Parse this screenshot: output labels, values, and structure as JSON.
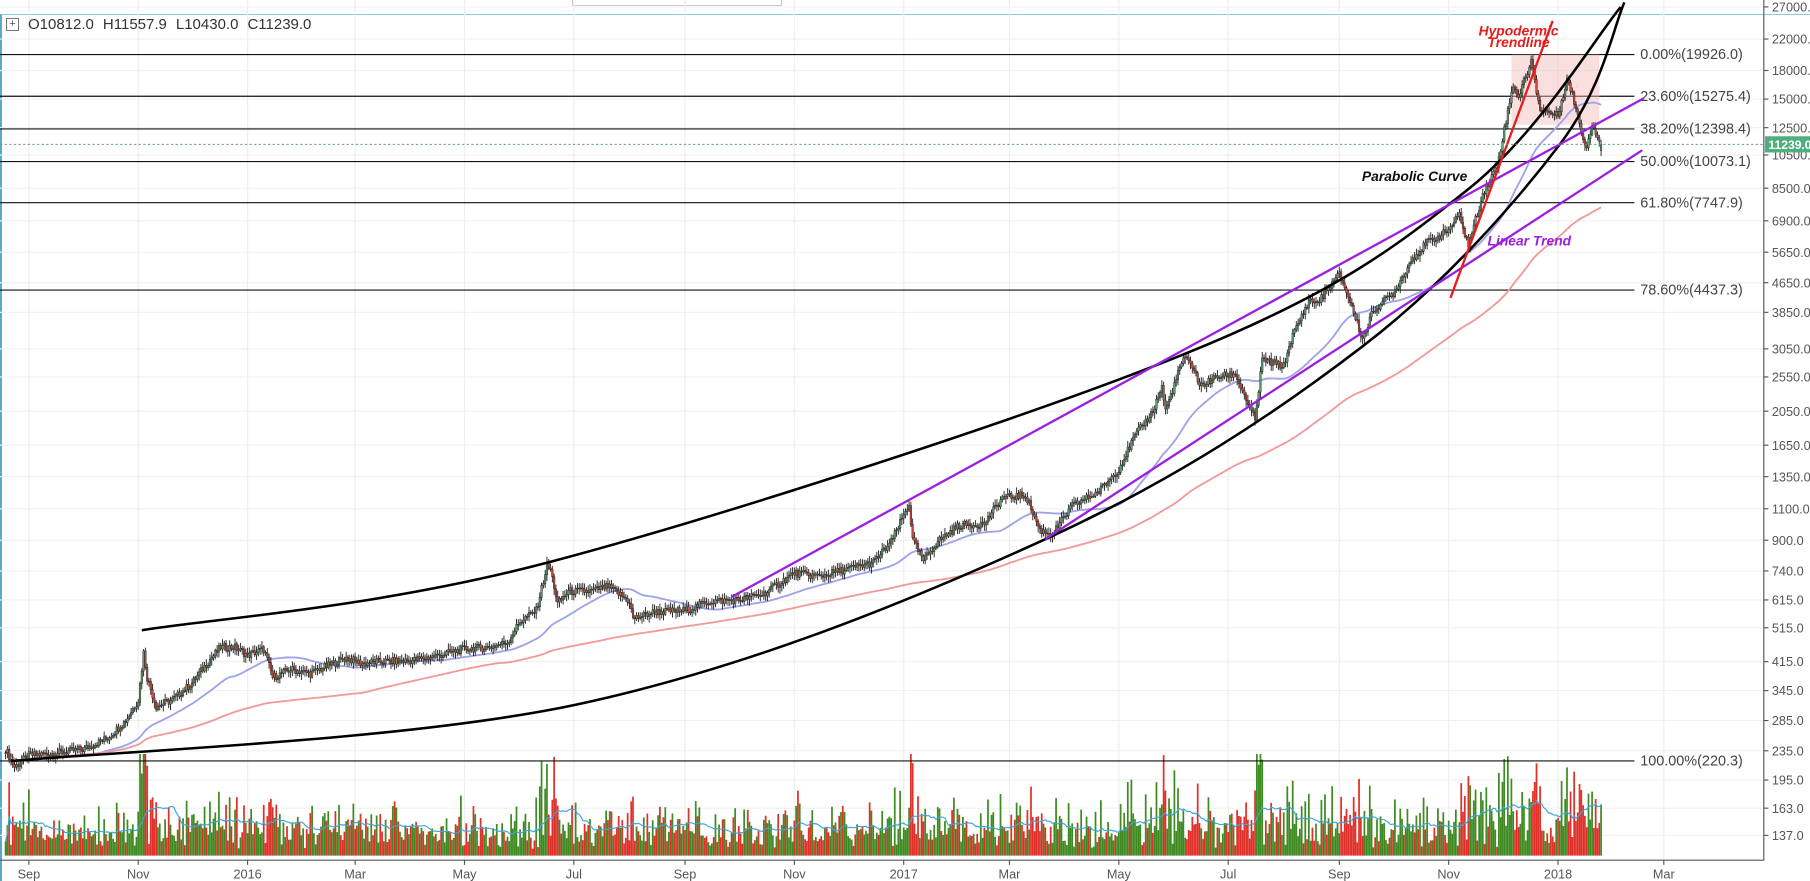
{
  "legend": {
    "items": [
      {
        "label": "O",
        "value": "10812.0"
      },
      {
        "label": "H",
        "value": "11557.9"
      },
      {
        "label": "L",
        "value": "10430.0"
      },
      {
        "label": "C",
        "value": "11239.0"
      }
    ]
  },
  "chart_data": {
    "type": "candlestick",
    "price_scale": "log",
    "grid": true,
    "price_axis": {
      "ylim": [
        137,
        27000
      ],
      "ticks": [
        "27000.0",
        "22000.0",
        "18000.0",
        "15000.0",
        "12500.0",
        "10500.0",
        "8500.0",
        "6900.0",
        "5650.0",
        "4650.0",
        "3850.0",
        "3050.0",
        "2550.0",
        "2050.0",
        "1650.0",
        "1350.0",
        "1100.0",
        "900.0",
        "740.0",
        "615.0",
        "515.0",
        "415.0",
        "345.0",
        "285.0",
        "235.0",
        "195.0",
        "163.0",
        "137.0"
      ]
    },
    "time_axis": {
      "ticks": [
        {
          "label": "Sep",
          "date": "2015-09-01"
        },
        {
          "label": "Nov",
          "date": "2015-11-01"
        },
        {
          "label": "2016",
          "date": "2016-01-01"
        },
        {
          "label": "Mar",
          "date": "2016-03-01"
        },
        {
          "label": "May",
          "date": "2016-05-01"
        },
        {
          "label": "Jul",
          "date": "2016-07-01"
        },
        {
          "label": "Sep",
          "date": "2016-09-01"
        },
        {
          "label": "Nov",
          "date": "2016-11-01"
        },
        {
          "label": "2017",
          "date": "2017-01-01"
        },
        {
          "label": "Mar",
          "date": "2017-03-01"
        },
        {
          "label": "May",
          "date": "2017-05-01"
        },
        {
          "label": "Jul",
          "date": "2017-07-01"
        },
        {
          "label": "Sep",
          "date": "2017-09-01"
        },
        {
          "label": "Nov",
          "date": "2017-11-01"
        },
        {
          "label": "2018",
          "date": "2018-01-01"
        },
        {
          "label": "Mar",
          "date": "2018-03-01"
        }
      ]
    },
    "closes": [
      [
        "2015-08-19",
        238
      ],
      [
        "2015-08-24",
        212
      ],
      [
        "2015-09-01",
        228
      ],
      [
        "2015-09-15",
        231
      ],
      [
        "2015-10-01",
        237
      ],
      [
        "2015-10-15",
        255
      ],
      [
        "2015-10-25",
        285
      ],
      [
        "2015-11-01",
        325
      ],
      [
        "2015-11-04",
        440
      ],
      [
        "2015-11-06",
        375
      ],
      [
        "2015-11-11",
        312
      ],
      [
        "2015-11-20",
        325
      ],
      [
        "2015-12-01",
        362
      ],
      [
        "2015-12-10",
        415
      ],
      [
        "2015-12-17",
        455
      ],
      [
        "2015-12-25",
        455
      ],
      [
        "2016-01-01",
        432
      ],
      [
        "2016-01-10",
        450
      ],
      [
        "2016-01-15",
        375
      ],
      [
        "2016-01-25",
        395
      ],
      [
        "2016-02-05",
        385
      ],
      [
        "2016-02-15",
        405
      ],
      [
        "2016-02-25",
        425
      ],
      [
        "2016-03-05",
        410
      ],
      [
        "2016-03-15",
        415
      ],
      [
        "2016-04-01",
        418
      ],
      [
        "2016-04-15",
        430
      ],
      [
        "2016-05-01",
        450
      ],
      [
        "2016-05-15",
        455
      ],
      [
        "2016-05-25",
        470
      ],
      [
        "2016-06-01",
        536
      ],
      [
        "2016-06-10",
        575
      ],
      [
        "2016-06-16",
        765
      ],
      [
        "2016-06-18",
        745
      ],
      [
        "2016-06-22",
        600
      ],
      [
        "2016-06-28",
        650
      ],
      [
        "2016-07-10",
        650
      ],
      [
        "2016-07-20",
        670
      ],
      [
        "2016-08-01",
        610
      ],
      [
        "2016-08-03",
        545
      ],
      [
        "2016-08-15",
        570
      ],
      [
        "2016-09-01",
        575
      ],
      [
        "2016-09-15",
        610
      ],
      [
        "2016-10-01",
        615
      ],
      [
        "2016-10-15",
        640
      ],
      [
        "2016-11-01",
        730
      ],
      [
        "2016-11-15",
        715
      ],
      [
        "2016-12-01",
        750
      ],
      [
        "2016-12-15",
        780
      ],
      [
        "2016-12-25",
        890
      ],
      [
        "2017-01-04",
        1135
      ],
      [
        "2017-01-06",
        900
      ],
      [
        "2017-01-12",
        790
      ],
      [
        "2017-01-20",
        895
      ],
      [
        "2017-02-01",
        990
      ],
      [
        "2017-02-15",
        1000
      ],
      [
        "2017-02-25",
        1180
      ],
      [
        "2017-03-10",
        1200
      ],
      [
        "2017-03-18",
        960
      ],
      [
        "2017-03-25",
        935
      ],
      [
        "2017-04-05",
        1120
      ],
      [
        "2017-04-20",
        1230
      ],
      [
        "2017-05-01",
        1420
      ],
      [
        "2017-05-10",
        1750
      ],
      [
        "2017-05-20",
        2050
      ],
      [
        "2017-05-25",
        2400
      ],
      [
        "2017-05-27",
        2050
      ],
      [
        "2017-06-06",
        2880
      ],
      [
        "2017-06-12",
        2700
      ],
      [
        "2017-06-15",
        2400
      ],
      [
        "2017-06-25",
        2550
      ],
      [
        "2017-07-05",
        2600
      ],
      [
        "2017-07-16",
        1930
      ],
      [
        "2017-07-20",
        2850
      ],
      [
        "2017-08-01",
        2730
      ],
      [
        "2017-08-05",
        3230
      ],
      [
        "2017-08-15",
        4150
      ],
      [
        "2017-08-20",
        4100
      ],
      [
        "2017-09-01",
        4900
      ],
      [
        "2017-09-05",
        4400
      ],
      [
        "2017-09-14",
        3250
      ],
      [
        "2017-09-20",
        3900
      ],
      [
        "2017-10-01",
        4350
      ],
      [
        "2017-10-12",
        5450
      ],
      [
        "2017-10-20",
        6000
      ],
      [
        "2017-10-31",
        6450
      ],
      [
        "2017-11-07",
        7150
      ],
      [
        "2017-11-12",
        5900
      ],
      [
        "2017-11-20",
        8200
      ],
      [
        "2017-11-28",
        9800
      ],
      [
        "2017-12-07",
        16500
      ],
      [
        "2017-12-10",
        15200
      ],
      [
        "2017-12-17",
        19100
      ],
      [
        "2017-12-22",
        14000
      ],
      [
        "2017-12-25",
        13900
      ],
      [
        "2018-01-01",
        13500
      ],
      [
        "2018-01-06",
        17100
      ],
      [
        "2018-01-10",
        14800
      ],
      [
        "2018-01-16",
        11200
      ],
      [
        "2018-01-17",
        11200
      ],
      [
        "2018-01-20",
        12800
      ],
      [
        "2018-01-25",
        11239
      ]
    ],
    "last_candle": {
      "open": 10812.0,
      "high": 11557.9,
      "low": 10430.0,
      "close": 11239.0
    },
    "last_price_tag": "11239.0",
    "moving_averages": [
      {
        "period": 50,
        "color": "#9ea3ea"
      },
      {
        "period": 200,
        "color": "#f19a9a"
      }
    ],
    "volume_ma_color": "#3ea6d8",
    "fib_retracement": [
      {
        "label": "0.00%(19926.0)",
        "price": 19926.0
      },
      {
        "label": "23.60%(15275.4)",
        "price": 15275.4
      },
      {
        "label": "38.20%(12398.4)",
        "price": 12398.4
      },
      {
        "label": "50.00%(10073.1)",
        "price": 10073.1
      },
      {
        "label": "61.80%(7747.9)",
        "price": 7747.9
      },
      {
        "label": "78.60%(4437.3)",
        "price": 4437.3
      },
      {
        "label": "100.00%(220.3)",
        "price": 220.3
      }
    ],
    "drawings": [
      {
        "kind": "curve",
        "color": "#000000",
        "points": [
          [
            "2015-11-03",
            507
          ],
          [
            "2016-06-17",
            782
          ],
          [
            "2017-06-06",
            2943
          ],
          [
            "2017-11-11",
            8371
          ],
          [
            "2018-02-05",
            27000
          ]
        ]
      },
      {
        "kind": "curve",
        "color": "#000000",
        "points": [
          [
            "2015-08-22",
            220
          ],
          [
            "2016-07-03",
            316
          ],
          [
            "2017-03-21",
            906
          ],
          [
            "2017-09-14",
            3100
          ],
          [
            "2018-01-02",
            11240
          ],
          [
            "2018-02-07",
            27800
          ]
        ]
      },
      {
        "kind": "line",
        "color": "#9b1fe0",
        "points": [
          [
            "2016-09-27",
            627
          ],
          [
            "2018-02-18",
            15090
          ]
        ]
      },
      {
        "kind": "line",
        "color": "#9b1fe0",
        "points": [
          [
            "2017-03-21",
            906
          ],
          [
            "2018-02-17",
            10830
          ]
        ]
      },
      {
        "kind": "line",
        "color": "#e51c1c",
        "points": [
          [
            "2017-11-02",
            4220
          ],
          [
            "2017-12-29",
            24700
          ]
        ]
      },
      {
        "kind": "rect",
        "color": "#f5b8b8",
        "points": [
          [
            "2017-12-06",
            19926
          ],
          [
            "2018-01-24",
            12740
          ]
        ]
      }
    ],
    "annotations": [
      {
        "text": "Hypodermic",
        "color": "#e51c1c",
        "date": "2017-12-10",
        "price": 22500
      },
      {
        "text": "Trendline",
        "color": "#e51c1c",
        "date": "2017-12-10",
        "price": 20900
      },
      {
        "text": "Parabolic Curve",
        "color": "#111111",
        "date": "2017-10-13",
        "price": 8900
      },
      {
        "text": "Linear Trend",
        "color": "#9b1fe0",
        "date": "2017-12-16",
        "price": 5900
      }
    ],
    "colors": {
      "up": "#5f9e6e",
      "down": "#c94a3d",
      "vol_up": "#3f8a22",
      "vol_down": "#e0302a",
      "price_tag": "#4caf7d"
    }
  }
}
